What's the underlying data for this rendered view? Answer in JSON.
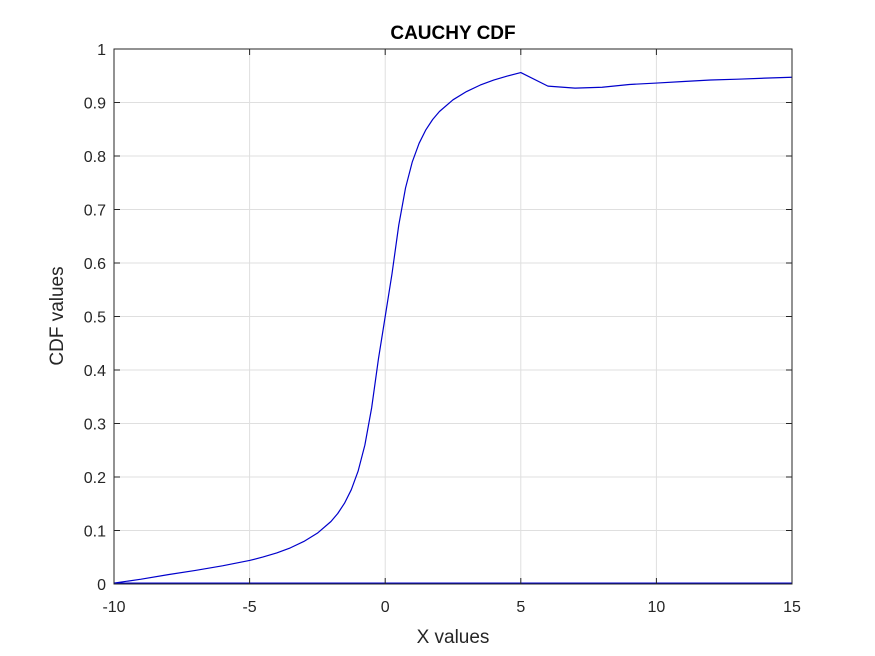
{
  "chart_data": {
    "type": "line",
    "title": "CAUCHY CDF",
    "xlabel": "X values",
    "ylabel": "CDF values",
    "xlim": [
      -10,
      15
    ],
    "ylim": [
      0,
      1
    ],
    "x_ticks": [
      -10,
      -5,
      0,
      5,
      10,
      15
    ],
    "y_ticks": [
      0,
      0.1,
      0.2,
      0.3,
      0.4,
      0.5,
      0.6,
      0.7,
      0.8,
      0.9,
      1
    ],
    "x_tick_labels": [
      "-10",
      "-5",
      "0",
      "5",
      "10",
      "15"
    ],
    "y_tick_labels": [
      "0",
      "0.1",
      "0.2",
      "0.3",
      "0.4",
      "0.5",
      "0.6",
      "0.7",
      "0.8",
      "0.9",
      "1"
    ],
    "grid": true,
    "series": [
      {
        "color": "#0000cc",
        "x": [
          -10,
          -9,
          -8,
          -7,
          -6,
          -5,
          -4.5,
          -4,
          -3.5,
          -3,
          -2.5,
          -2,
          -1.75,
          -1.5,
          -1.25,
          -1,
          -0.75,
          -0.5,
          -0.25,
          0,
          0.25,
          0.5,
          0.75,
          1,
          1.25,
          1.5,
          1.75,
          2,
          2.5,
          3,
          3.5,
          4,
          4.5,
          5,
          6,
          7,
          8,
          9,
          10,
          11,
          12,
          13,
          14,
          15
        ],
        "y": [
          0.0017,
          0.009,
          0.0175,
          0.0253,
          0.034,
          0.044,
          0.0505,
          0.058,
          0.0675,
          0.0795,
          0.095,
          0.1168,
          0.1318,
          0.151,
          0.1763,
          0.2108,
          0.2596,
          0.3292,
          0.4204,
          0.5,
          0.5796,
          0.6708,
          0.7404,
          0.7892,
          0.8237,
          0.849,
          0.8682,
          0.8832,
          0.905,
          0.9205,
          0.9325,
          0.942,
          0.9495,
          0.956,
          0.9306,
          0.9268,
          0.9285,
          0.9337,
          0.9363,
          0.9393,
          0.942,
          0.9436,
          0.9455,
          0.9472
        ]
      },
      {
        "color": "#0000cc",
        "x": [
          -10,
          15
        ],
        "y": [
          0.0017,
          0.0017
        ]
      }
    ]
  }
}
